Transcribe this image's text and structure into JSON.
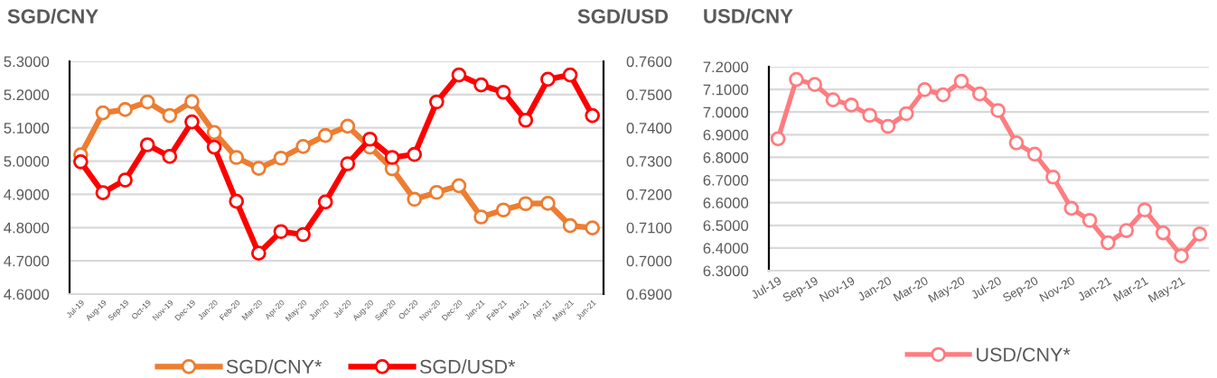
{
  "chart_data": [
    {
      "type": "line",
      "ylabel": "SGD/CNY",
      "y2label": "SGD/USD",
      "categories": [
        "Jul-19",
        "Aug-19",
        "Sep-19",
        "Oct-19",
        "Nov-19",
        "Dec-19",
        "Jan-20",
        "Feb-20",
        "Mar-20",
        "Apr-20",
        "May-20",
        "Jun-20",
        "Jul-20",
        "Aug-20",
        "Sep-20",
        "Oct-20",
        "Nov-20",
        "Dec-20",
        "Jan-21",
        "Feb-21",
        "Mar-21",
        "Apr-21",
        "May-21",
        "Jun-21"
      ],
      "series": [
        {
          "name": "SGD/CNY*",
          "color": "#ed7d31",
          "values": [
            5.019,
            5.145,
            5.155,
            5.178,
            5.137,
            5.179,
            5.086,
            5.011,
            4.978,
            5.009,
            5.044,
            5.077,
            5.105,
            5.042,
            4.977,
            4.885,
            4.906,
            4.926,
            4.832,
            4.853,
            4.872,
            4.873,
            4.806,
            4.799
          ]
        },
        {
          "name": "SGD/USD*",
          "color": "#ff0000",
          "axis": "y2",
          "values": [
            0.7298,
            0.7205,
            0.7243,
            0.7349,
            0.7314,
            0.7418,
            0.7342,
            0.7179,
            0.7023,
            0.7088,
            0.7079,
            0.7177,
            0.7292,
            0.7366,
            0.7311,
            0.732,
            0.7478,
            0.7559,
            0.7529,
            0.7507,
            0.7423,
            0.7546,
            0.7559,
            0.7437
          ]
        }
      ],
      "ylim": [
        4.6,
        5.3
      ],
      "yticks": [
        {
          "value": 4.6,
          "label": "4.6000"
        },
        {
          "value": 4.7,
          "label": "4.7000"
        },
        {
          "value": 4.8,
          "label": "4.8000"
        },
        {
          "value": 4.9,
          "label": "4.9000"
        },
        {
          "value": 5.0,
          "label": "5.0000"
        },
        {
          "value": 5.1,
          "label": "5.1000"
        },
        {
          "value": 5.2,
          "label": "5.2000"
        },
        {
          "value": 5.3,
          "label": "5.3000"
        }
      ],
      "y2lim": [
        0.69,
        0.76
      ],
      "y2ticks": [
        {
          "value": 0.69,
          "label": "0.6900"
        },
        {
          "value": 0.7,
          "label": "0.7000"
        },
        {
          "value": 0.71,
          "label": "0.7100"
        },
        {
          "value": 0.72,
          "label": "0.7200"
        },
        {
          "value": 0.73,
          "label": "0.7300"
        },
        {
          "value": 0.74,
          "label": "0.7400"
        },
        {
          "value": 0.75,
          "label": "0.7500"
        },
        {
          "value": 0.76,
          "label": "0.7600"
        }
      ],
      "grid": "y",
      "legend": "bottom",
      "marker": "circle",
      "line_style": "solid"
    },
    {
      "type": "line",
      "ylabel": "USD/CNY",
      "categories": [
        "Jul-19",
        null,
        "Sep-19",
        null,
        "Nov-19",
        null,
        "Jan-20",
        null,
        "Mar-20",
        null,
        "May-20",
        null,
        "Jul-20",
        null,
        "Sep-20",
        null,
        "Nov-20",
        null,
        "Jan-21",
        null,
        "Mar-21",
        null,
        "May-21",
        null
      ],
      "series": [
        {
          "name": "USD/CNY*",
          "color": "#ff7c80",
          "values": [
            6.882,
            7.144,
            7.122,
            7.054,
            7.031,
            6.986,
            6.937,
            6.993,
            7.099,
            7.076,
            7.136,
            7.08,
            7.007,
            6.864,
            6.814,
            6.713,
            6.575,
            6.522,
            6.423,
            6.477,
            6.568,
            6.467,
            6.365,
            6.462
          ]
        }
      ],
      "ylim": [
        6.3,
        7.2
      ],
      "yticks": [
        {
          "value": 6.3,
          "label": "6.3000"
        },
        {
          "value": 6.4,
          "label": "6.4000"
        },
        {
          "value": 6.5,
          "label": "6.5000"
        },
        {
          "value": 6.6,
          "label": "6.6000"
        },
        {
          "value": 6.7,
          "label": "6.7000"
        },
        {
          "value": 6.8,
          "label": "6.8000"
        },
        {
          "value": 6.9,
          "label": "6.9000"
        },
        {
          "value": 7.0,
          "label": "7.0000"
        },
        {
          "value": 7.1,
          "label": "7.1000"
        },
        {
          "value": 7.2,
          "label": "7.2000"
        }
      ],
      "grid": "y",
      "legend": "bottom",
      "marker": "circle",
      "line_style": "solid"
    }
  ]
}
